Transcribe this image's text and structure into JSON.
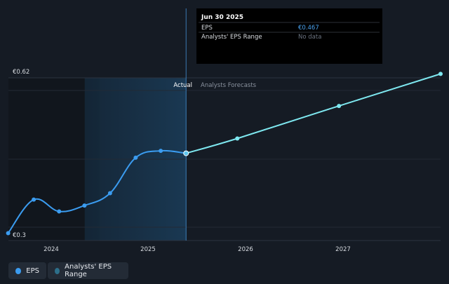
{
  "tooltip": {
    "date": "Jun 30 2025",
    "rows": [
      {
        "label": "EPS",
        "value": "€0.467",
        "value_color": "#4aa3f0"
      },
      {
        "label": "Analysts' EPS Range",
        "value": "No data",
        "value_color": "#6b7380"
      }
    ]
  },
  "regions": {
    "actual_label": "Actual",
    "forecast_label": "Analysts Forecasts"
  },
  "legend": {
    "items": [
      {
        "label": "EPS",
        "color": "#3b9cf0"
      },
      {
        "label": "Analysts' EPS Range",
        "color": "#2d6f8a"
      }
    ]
  },
  "chart_data": {
    "type": "line",
    "title": "",
    "xlabel": "",
    "ylabel": "",
    "y_tick_labels": [
      "€0.62",
      "€0.3"
    ],
    "x_tick_labels": [
      "2024",
      "2025",
      "2026",
      "2027"
    ],
    "xlim": [
      "2023-10-01",
      "2027-12-31"
    ],
    "ylim": [
      0.3,
      0.62
    ],
    "grid": true,
    "highlight_point": {
      "date": "2025-06-30",
      "value": 0.467
    },
    "shaded_range": [
      "2024-07-01",
      "2025-06-30"
    ],
    "series": [
      {
        "name": "EPS",
        "color": "#3b9cf0",
        "points": [
          {
            "date": "2023-09-30",
            "value": 0.305
          },
          {
            "date": "2023-12-31",
            "value": 0.373
          },
          {
            "date": "2024-03-31",
            "value": 0.349
          },
          {
            "date": "2024-06-30",
            "value": 0.361
          },
          {
            "date": "2024-09-30",
            "value": 0.386
          },
          {
            "date": "2024-12-31",
            "value": 0.458
          },
          {
            "date": "2025-03-31",
            "value": 0.472
          },
          {
            "date": "2025-06-30",
            "value": 0.467
          }
        ]
      },
      {
        "name": "Analysts Forecasts",
        "color": "#7ee8f0",
        "points": [
          {
            "date": "2025-06-30",
            "value": 0.467
          },
          {
            "date": "2025-12-31",
            "value": 0.497
          },
          {
            "date": "2026-12-31",
            "value": 0.563
          },
          {
            "date": "2027-12-31",
            "value": 0.628
          }
        ]
      }
    ]
  }
}
